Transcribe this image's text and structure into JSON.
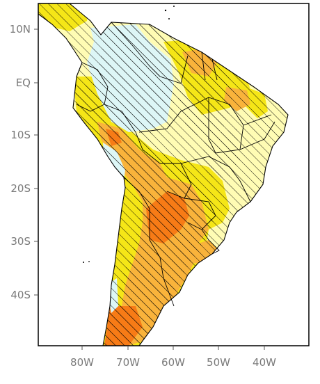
{
  "axes": {
    "lat_labels": [
      "10N",
      "EQ",
      "10S",
      "20S",
      "30S",
      "40S"
    ],
    "lon_labels": [
      "80W",
      "70W",
      "60W",
      "50W",
      "40W"
    ]
  },
  "extent": {
    "lon_range": [
      "90W",
      "30W"
    ],
    "lat_range": [
      "15N",
      "50S"
    ]
  },
  "colors": {
    "light_blue": "#ddf6f6",
    "pale_yellow": "#fffcb4",
    "yellow": "#f5e617",
    "light_orange": "#f9b33b",
    "orange": "#f77b16",
    "ocean": "#ffffff",
    "borders": "#000000",
    "hatching": "#000000",
    "frame": "#000000"
  },
  "features": {
    "hatching": "diagonal hatching over areas of significance",
    "boundaries": "country and state borders"
  }
}
